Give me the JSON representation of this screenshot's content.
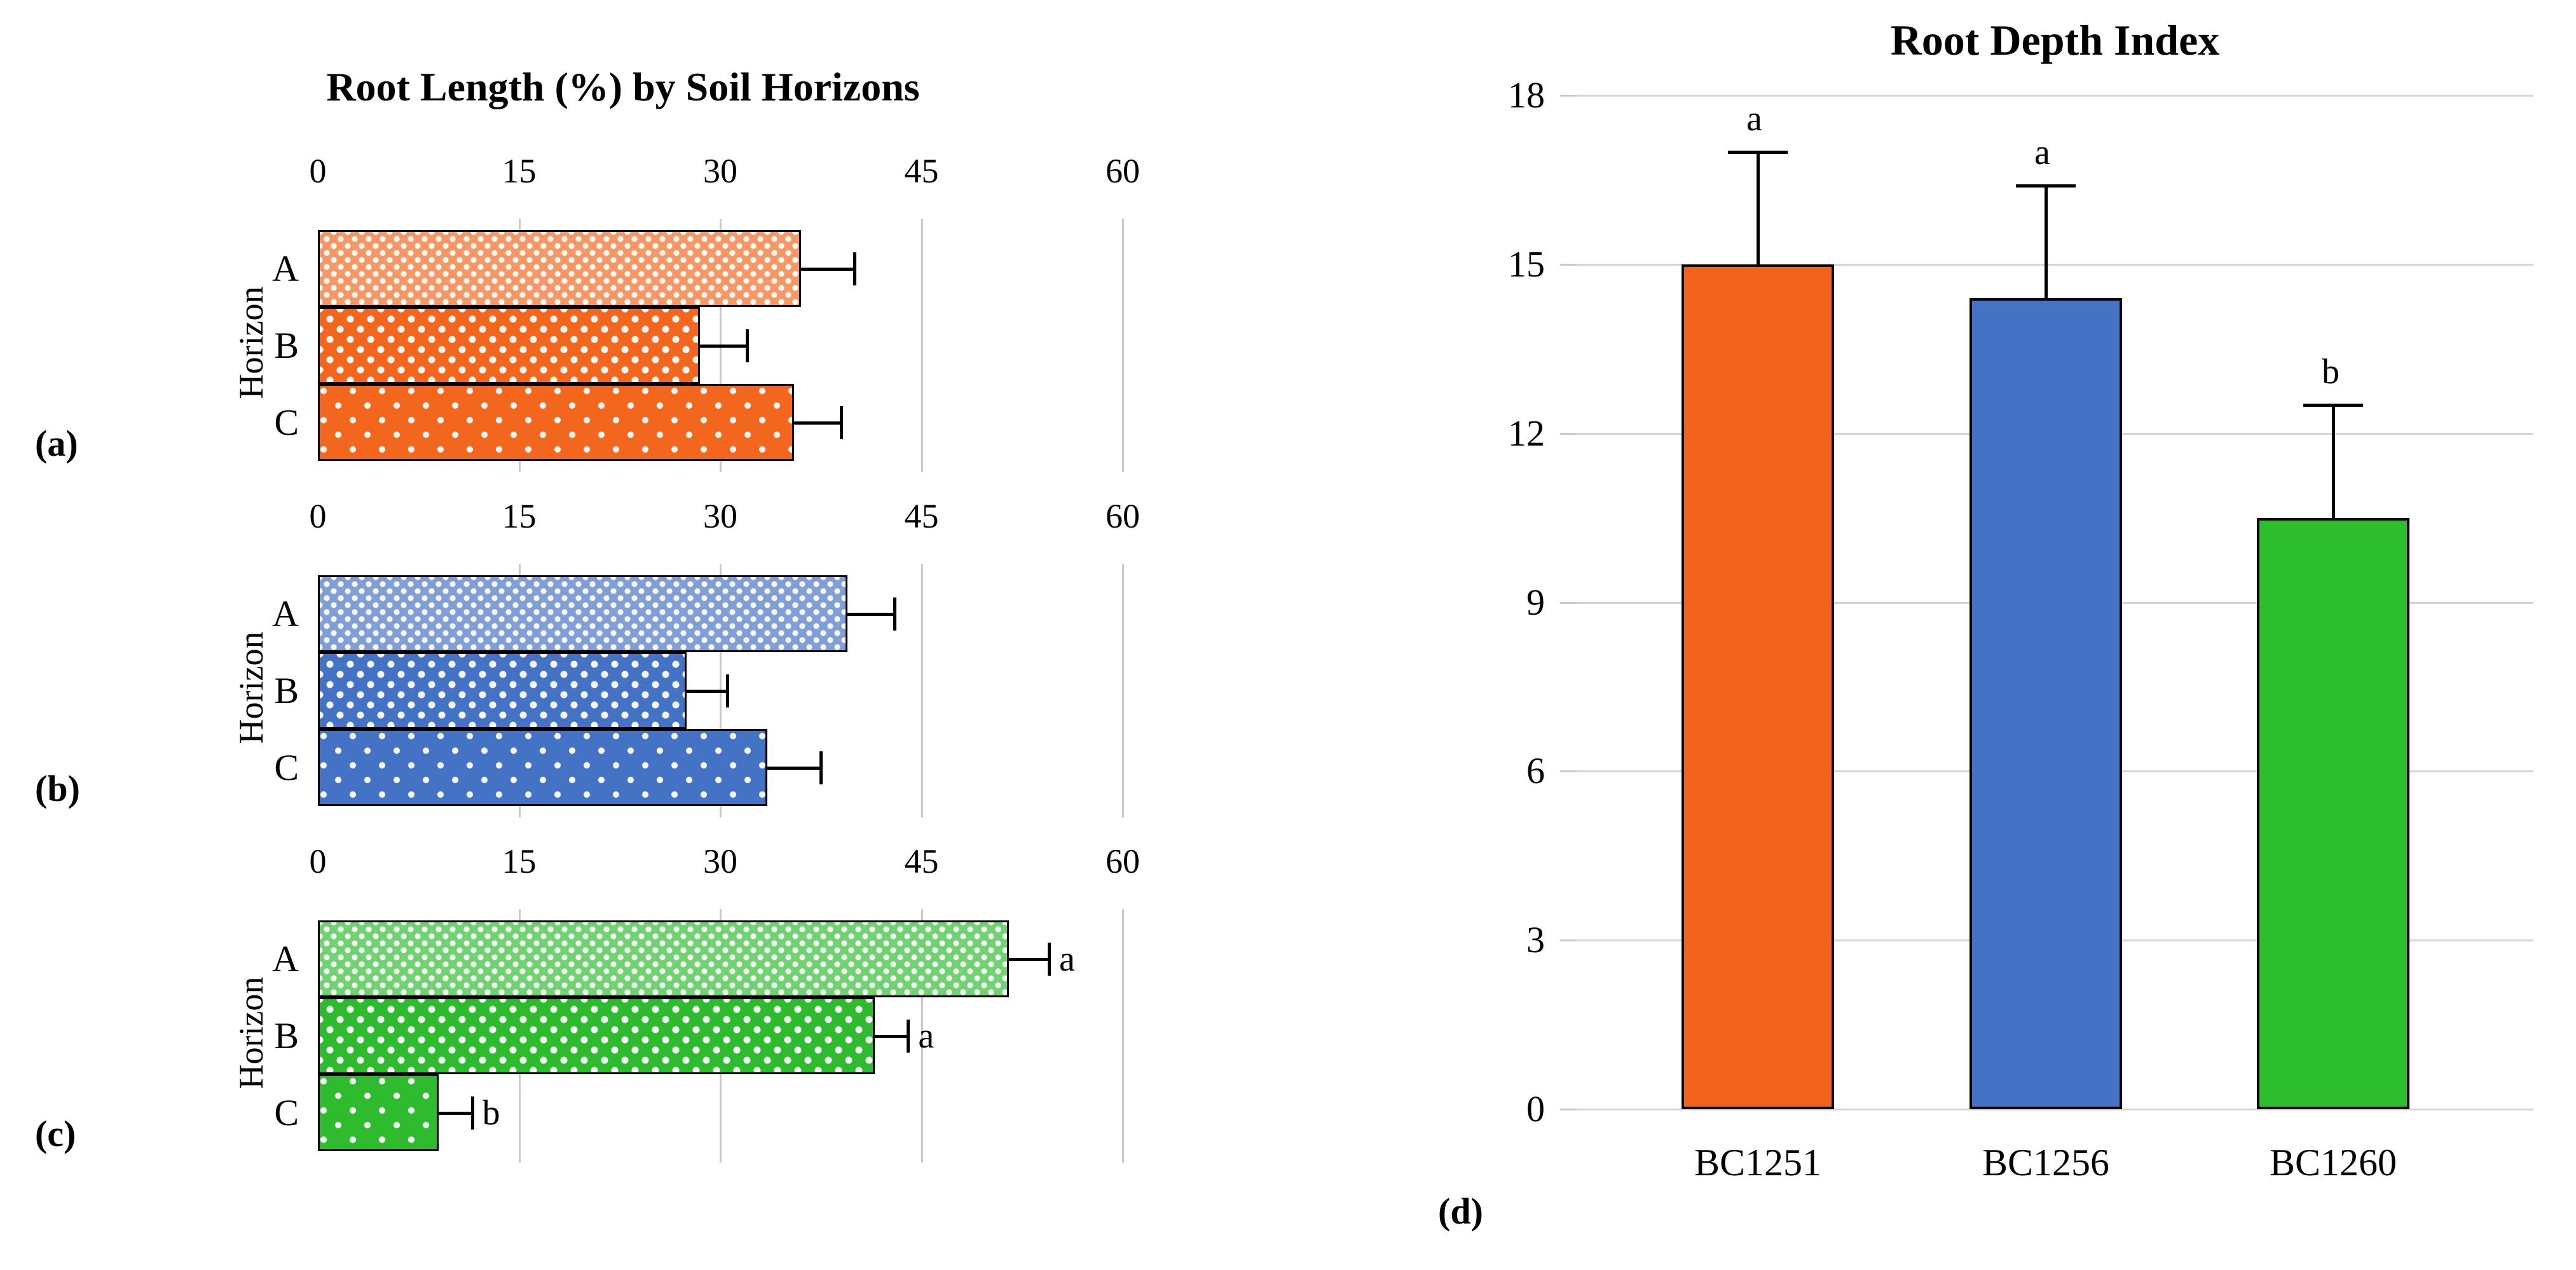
{
  "chart_data": [
    {
      "panel": "(a)",
      "type": "bar",
      "orientation": "horizontal",
      "title": "Root Length (%) by Soil Horizons",
      "ylabel": "Horizon",
      "xlim": [
        0,
        60
      ],
      "xticks": [
        0,
        15,
        30,
        45,
        60
      ],
      "categories": [
        "A",
        "B",
        "C"
      ],
      "values": [
        36,
        28.5,
        35.5
      ],
      "errors": [
        4,
        3.5,
        3.5
      ],
      "letters": [
        "",
        "",
        ""
      ],
      "color": "#f2671d",
      "patterns": [
        "fine",
        "medium",
        "sparse"
      ],
      "grid": "vertical"
    },
    {
      "panel": "(b)",
      "type": "bar",
      "orientation": "horizontal",
      "ylabel": "Horizon",
      "xlim": [
        0,
        60
      ],
      "xticks": [
        0,
        15,
        30,
        45,
        60
      ],
      "categories": [
        "A",
        "B",
        "C"
      ],
      "values": [
        39.5,
        27.5,
        33.5
      ],
      "errors": [
        3.5,
        3,
        4
      ],
      "letters": [
        "",
        "",
        ""
      ],
      "color": "#4472c4",
      "patterns": [
        "fine",
        "medium",
        "sparse"
      ],
      "grid": "vertical"
    },
    {
      "panel": "(c)",
      "type": "bar",
      "orientation": "horizontal",
      "ylabel": "Horizon",
      "xlim": [
        0,
        60
      ],
      "xticks": [
        0,
        15,
        30,
        45,
        60
      ],
      "categories": [
        "A",
        "B",
        "C"
      ],
      "values": [
        51.5,
        41.5,
        9
      ],
      "errors": [
        3,
        2.5,
        2.5
      ],
      "letters": [
        "a",
        "a",
        "b"
      ],
      "color": "#2ebc2e",
      "patterns": [
        "fine",
        "medium",
        "sparse"
      ],
      "grid": "vertical"
    },
    {
      "panel": "(d)",
      "type": "bar",
      "orientation": "vertical",
      "title": "Root Depth Index",
      "ylim": [
        0,
        18
      ],
      "yticks": [
        0,
        3,
        6,
        9,
        12,
        15,
        18
      ],
      "categories": [
        "BC1251",
        "BC1256",
        "BC1260"
      ],
      "values": [
        15,
        14.4,
        10.5
      ],
      "errors": [
        2,
        2,
        2
      ],
      "letters": [
        "a",
        "a",
        "b"
      ],
      "colors": [
        "#f2621a",
        "#4472c4",
        "#2dbe2d"
      ],
      "grid": "horizontal"
    }
  ]
}
